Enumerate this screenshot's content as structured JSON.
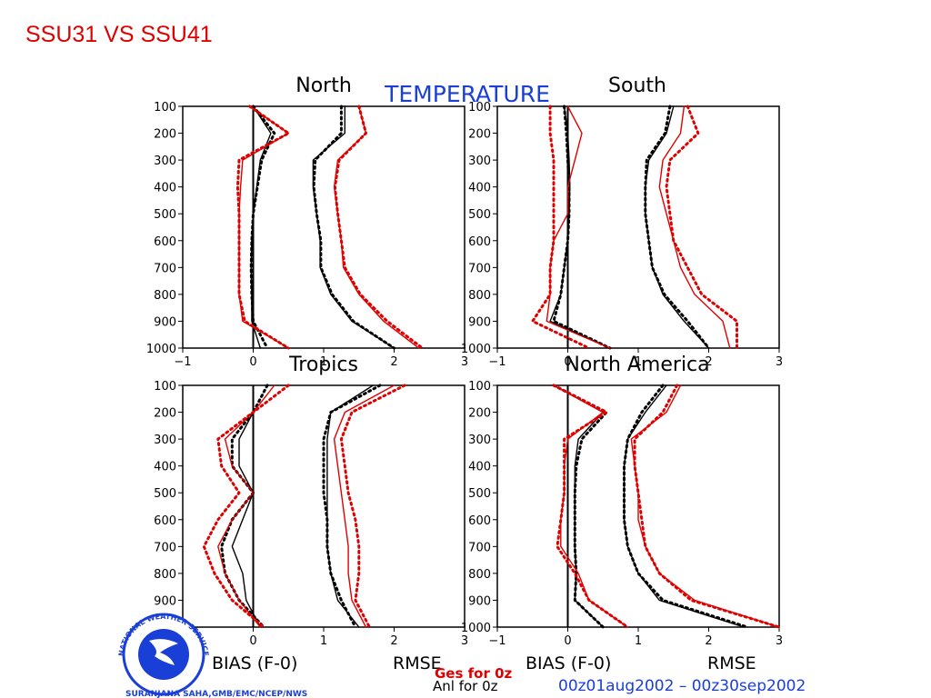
{
  "slide_title": "SSU31 VS SSU41",
  "figure": {
    "main_title": "TEMPERATURE",
    "xlabel_left": "BIAS (F-0)",
    "xlabel_right": "RMSE",
    "legend": [
      {
        "label": "Ges for 0z",
        "color": "#e00000"
      },
      {
        "label": "Anl for 0z",
        "color": "#000000"
      }
    ],
    "date_range": "00z01aug2002 – 00z30sep2002",
    "credit": "SURANJANA SAHA,GMB/EMC/NCEP/NWS",
    "logo_text": "NATIONAL WEATHER SERVICE",
    "colors": {
      "title": "#1a3fd6",
      "ges": "#e00000",
      "anl": "#000000",
      "logo": "#1a3fd6"
    }
  },
  "chart_data": [
    {
      "type": "line",
      "title": "North",
      "y": [
        100,
        200,
        300,
        400,
        500,
        600,
        700,
        800,
        900,
        1000
      ],
      "xlim": [
        -1,
        3
      ],
      "ylim": [
        1000,
        100
      ],
      "xticks": [
        -1,
        0,
        1,
        2,
        3
      ],
      "series": [
        {
          "style": "black-solid",
          "values": [
            0.0,
            0.25,
            0.1,
            0.05,
            0.0,
            -0.02,
            -0.03,
            -0.02,
            -0.02,
            0.1
          ]
        },
        {
          "style": "black-dotted",
          "values": [
            0.0,
            0.3,
            0.12,
            0.06,
            0.0,
            -0.02,
            -0.03,
            -0.02,
            0.0,
            0.2
          ]
        },
        {
          "style": "red-solid",
          "values": [
            -0.05,
            0.5,
            -0.15,
            -0.18,
            -0.2,
            -0.2,
            -0.2,
            -0.2,
            -0.15,
            0.5
          ]
        },
        {
          "style": "red-dotted",
          "values": [
            -0.05,
            0.5,
            -0.2,
            -0.22,
            -0.2,
            -0.2,
            -0.2,
            -0.2,
            -0.12,
            0.5
          ]
        },
        {
          "style": "black-solid",
          "values": [
            1.3,
            1.3,
            0.85,
            0.85,
            0.9,
            0.95,
            0.95,
            1.1,
            1.4,
            2.0
          ]
        },
        {
          "style": "black-dotted",
          "values": [
            1.25,
            1.25,
            0.88,
            0.86,
            0.9,
            0.96,
            0.96,
            1.12,
            1.42,
            2.0
          ]
        },
        {
          "style": "red-solid",
          "values": [
            1.5,
            1.6,
            1.2,
            1.15,
            1.2,
            1.25,
            1.28,
            1.5,
            1.85,
            2.35
          ]
        },
        {
          "style": "red-dotted",
          "values": [
            1.5,
            1.6,
            1.22,
            1.16,
            1.2,
            1.25,
            1.3,
            1.52,
            1.9,
            2.4
          ]
        }
      ]
    },
    {
      "type": "line",
      "title": "South",
      "y": [
        100,
        200,
        300,
        400,
        500,
        600,
        700,
        800,
        900,
        1000
      ],
      "xlim": [
        -1,
        3
      ],
      "ylim": [
        1000,
        100
      ],
      "xticks": [
        -1,
        0,
        1,
        2,
        3
      ],
      "series": [
        {
          "style": "black-solid",
          "values": [
            -0.05,
            0.0,
            0.02,
            0.03,
            0.02,
            0.0,
            -0.05,
            -0.1,
            -0.25,
            0.6
          ]
        },
        {
          "style": "black-dotted",
          "values": [
            -0.05,
            -0.02,
            0.0,
            0.02,
            0.02,
            0.0,
            -0.05,
            -0.1,
            -0.2,
            0.6
          ]
        },
        {
          "style": "red-solid",
          "values": [
            0.0,
            0.2,
            0.1,
            0.0,
            0.0,
            -0.2,
            -0.25,
            -0.25,
            -0.3,
            0.6
          ]
        },
        {
          "style": "red-dotted",
          "values": [
            -0.25,
            -0.25,
            -0.2,
            -0.2,
            -0.2,
            -0.2,
            -0.25,
            -0.25,
            -0.5,
            0.3
          ]
        },
        {
          "style": "black-solid",
          "values": [
            1.5,
            1.4,
            1.15,
            1.1,
            1.1,
            1.15,
            1.2,
            1.35,
            1.65,
            2.0
          ]
        },
        {
          "style": "black-dotted",
          "values": [
            1.45,
            1.38,
            1.12,
            1.1,
            1.1,
            1.15,
            1.2,
            1.37,
            1.7,
            2.0
          ]
        },
        {
          "style": "red-solid",
          "values": [
            1.65,
            1.6,
            1.35,
            1.3,
            1.4,
            1.5,
            1.6,
            1.8,
            2.2,
            2.3
          ]
        },
        {
          "style": "red-dotted",
          "values": [
            1.7,
            1.85,
            1.45,
            1.4,
            1.45,
            1.5,
            1.7,
            1.9,
            2.4,
            2.4
          ]
        }
      ]
    },
    {
      "type": "line",
      "title": "Tropics",
      "y": [
        100,
        200,
        300,
        400,
        500,
        600,
        700,
        800,
        900,
        1000
      ],
      "xlim": [
        -1,
        3
      ],
      "ylim": [
        1000,
        100
      ],
      "xticks": [
        -1,
        0,
        1,
        2,
        3
      ],
      "series": [
        {
          "style": "black-solid",
          "values": [
            0.0,
            0.0,
            -0.2,
            -0.2,
            0.0,
            -0.15,
            -0.3,
            -0.15,
            -0.1,
            0.1
          ]
        },
        {
          "style": "black-dotted",
          "values": [
            0.2,
            0.0,
            -0.3,
            -0.3,
            0.0,
            -0.3,
            -0.45,
            -0.4,
            -0.2,
            0.15
          ]
        },
        {
          "style": "red-solid",
          "values": [
            0.3,
            0.0,
            -0.4,
            -0.3,
            0.0,
            -0.3,
            -0.5,
            -0.4,
            -0.2,
            0.1
          ]
        },
        {
          "style": "red-dotted",
          "values": [
            0.5,
            0.0,
            -0.5,
            -0.45,
            -0.2,
            -0.5,
            -0.7,
            -0.55,
            -0.3,
            0.15
          ]
        },
        {
          "style": "black-solid",
          "values": [
            1.7,
            1.1,
            1.05,
            1.05,
            1.05,
            1.05,
            1.05,
            1.1,
            1.2,
            1.5
          ]
        },
        {
          "style": "black-dotted",
          "values": [
            1.8,
            1.1,
            1.0,
            1.0,
            1.0,
            1.05,
            1.05,
            1.1,
            1.25,
            1.45
          ]
        },
        {
          "style": "red-solid",
          "values": [
            2.0,
            1.3,
            1.15,
            1.2,
            1.25,
            1.3,
            1.35,
            1.35,
            1.4,
            1.6
          ]
        },
        {
          "style": "red-dotted",
          "values": [
            2.15,
            1.4,
            1.25,
            1.3,
            1.35,
            1.45,
            1.5,
            1.5,
            1.45,
            1.65
          ]
        }
      ]
    },
    {
      "type": "line",
      "title": "North America",
      "y": [
        100,
        200,
        300,
        400,
        500,
        600,
        700,
        800,
        900,
        1000
      ],
      "xlim": [
        -1,
        3
      ],
      "ylim": [
        1000,
        100
      ],
      "xticks": [
        -1,
        0,
        1,
        2,
        3
      ],
      "series": [
        {
          "style": "black-solid",
          "values": [
            -0.2,
            0.5,
            0.15,
            0.1,
            0.1,
            0.1,
            0.1,
            0.12,
            0.1,
            0.5
          ]
        },
        {
          "style": "black-dotted",
          "values": [
            -0.2,
            0.55,
            0.2,
            0.12,
            0.1,
            0.1,
            0.1,
            0.12,
            0.1,
            0.5
          ]
        },
        {
          "style": "red-solid",
          "values": [
            -0.2,
            0.5,
            0.0,
            -0.05,
            -0.05,
            -0.1,
            -0.1,
            0.15,
            0.3,
            0.85
          ]
        },
        {
          "style": "red-dotted",
          "values": [
            -0.2,
            0.55,
            -0.05,
            -0.05,
            -0.05,
            -0.1,
            -0.15,
            0.1,
            0.3,
            0.85
          ]
        },
        {
          "style": "black-solid",
          "values": [
            1.4,
            1.1,
            0.85,
            0.8,
            0.8,
            0.8,
            0.85,
            1.0,
            1.3,
            2.5
          ]
        },
        {
          "style": "black-dotted",
          "values": [
            1.35,
            1.05,
            0.85,
            0.8,
            0.8,
            0.8,
            0.85,
            1.0,
            1.35,
            2.55
          ]
        },
        {
          "style": "red-solid",
          "values": [
            1.6,
            1.4,
            0.9,
            0.95,
            1.0,
            1.0,
            1.1,
            1.3,
            1.8,
            3.0
          ]
        },
        {
          "style": "red-dotted",
          "values": [
            1.55,
            1.35,
            0.95,
            0.95,
            1.0,
            1.05,
            1.1,
            1.3,
            1.75,
            3.0
          ]
        }
      ]
    }
  ]
}
